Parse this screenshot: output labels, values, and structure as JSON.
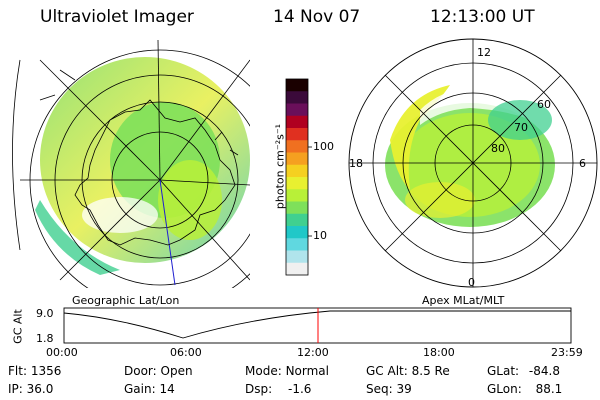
{
  "header": {
    "instrument": "Ultraviolet Imager",
    "date": "14 Nov 07",
    "time": "12:13:00 UT"
  },
  "panels": {
    "left_label": "Geographic Lat/Lon",
    "right_label": "Apex MLat/MLT"
  },
  "colorbar": {
    "unit": "photon cm⁻²s⁻¹",
    "ticks": [
      "100",
      "10"
    ],
    "colors": [
      "#1a0000",
      "#3b0a3a",
      "#6a0f5a",
      "#b00020",
      "#e03020",
      "#f07020",
      "#f5a020",
      "#f5d020",
      "#e8f030",
      "#b8f038",
      "#7ee05a",
      "#40d090",
      "#20c8c8",
      "#60d8e0",
      "#b0e4ec",
      "#f0f0f0"
    ]
  },
  "polar_right": {
    "mlt_labels": {
      "top": "12",
      "left": "18",
      "right": "6",
      "bottom": "0"
    },
    "lat_labels": [
      "60",
      "70",
      "80"
    ]
  },
  "timeline": {
    "ylabel": "GC Alt",
    "yticks": [
      "9.0",
      "1.8"
    ],
    "xticks": [
      "00:00",
      "06:00",
      "12:00",
      "18:00",
      "23:59"
    ],
    "marker_time": "12:13",
    "marker_color": "#ff0000"
  },
  "footer": {
    "flt_label": "Flt:",
    "flt_value": "1356",
    "ip_label": "IP:",
    "ip_value": "36.0",
    "door_label": "Door:",
    "door_value": "Open",
    "gain_label": "Gain:",
    "gain_value": "14",
    "mode_label": "Mode:",
    "mode_value": "Normal",
    "dsp_label": "Dsp:",
    "dsp_value": "-1.6",
    "gcalt_label": "GC Alt:",
    "gcalt_value": "8.5 Re",
    "seq_label": "Seq:",
    "seq_value": "39",
    "glat_label": "GLat:",
    "glat_value": "-84.8",
    "glon_label": "GLon:",
    "glon_value": "88.1"
  }
}
